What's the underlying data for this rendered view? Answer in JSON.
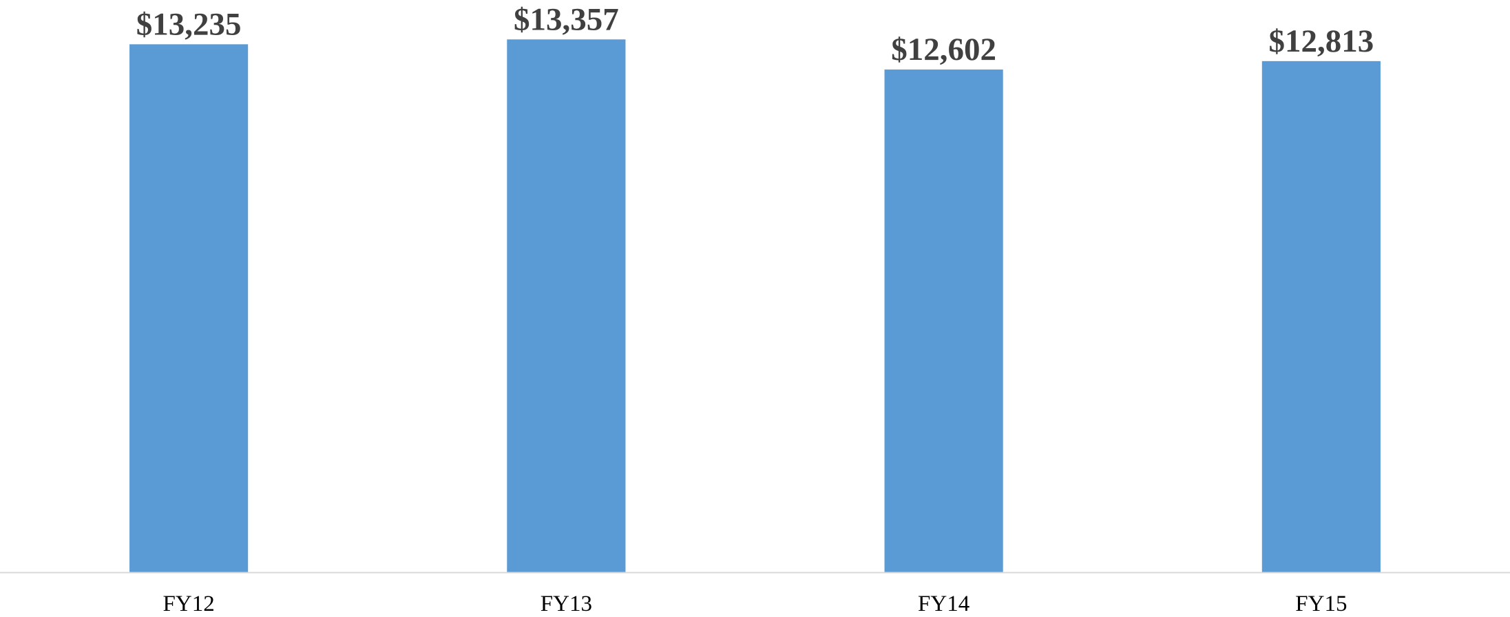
{
  "chart_data": {
    "type": "bar",
    "categories": [
      "FY12",
      "FY13",
      "FY14",
      "FY15"
    ],
    "values": [
      13235,
      13357,
      12602,
      12813
    ],
    "value_labels": [
      "$13,235",
      "$13,357",
      "$12,602",
      "$12,813"
    ],
    "color": "#5b9bd5",
    "ylim": [
      0,
      14000
    ]
  }
}
